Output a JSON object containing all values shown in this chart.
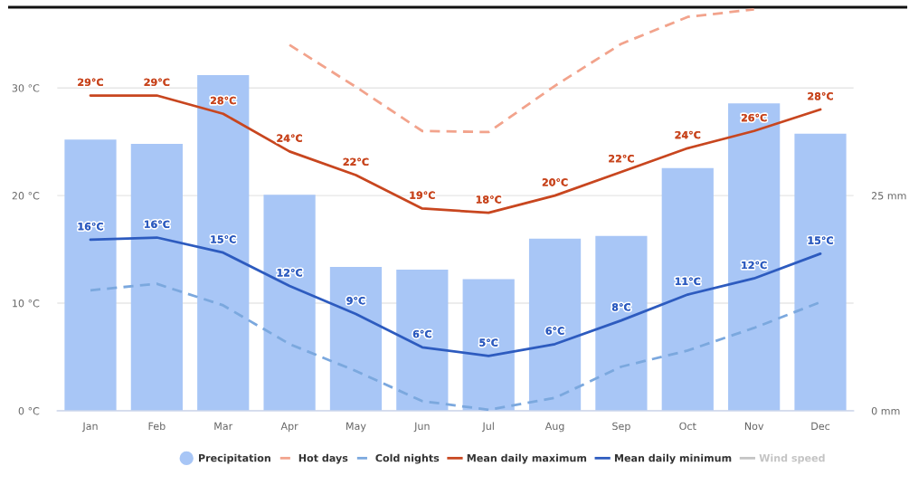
{
  "chart_data": {
    "type": "line",
    "categories": [
      "Jan",
      "Feb",
      "Mar",
      "Apr",
      "May",
      "Jun",
      "Jul",
      "Aug",
      "Sep",
      "Oct",
      "Nov",
      "Dec"
    ],
    "series": [
      {
        "name": "Precipitation",
        "type": "bar",
        "axis": "y2",
        "color": "#a8c6f6",
        "values": [
          31.5,
          31.0,
          39.0,
          25.1,
          16.7,
          16.4,
          15.3,
          20.0,
          20.3,
          28.2,
          35.7,
          32.2
        ]
      },
      {
        "name": "Hot days",
        "line_style": "dashed",
        "color": "#f2a38c",
        "values": [
          null,
          null,
          null,
          34,
          30.1,
          26,
          25.9,
          30.2,
          34.1,
          36.6,
          37.3,
          null
        ]
      },
      {
        "name": "Cold nights",
        "line_style": "dashed",
        "color": "#7ba8de",
        "values": [
          11.2,
          11.8,
          9.8,
          6.2,
          3.7,
          0.9,
          0.1,
          1.2,
          4.1,
          5.6,
          7.7,
          10.1
        ]
      },
      {
        "name": "Mean daily maximum",
        "line_style": "solid",
        "color": "#c8461f",
        "values": [
          29.3,
          29.3,
          27.6,
          24.1,
          21.9,
          18.8,
          18.4,
          20.0,
          22.2,
          24.4,
          26.0,
          28.0
        ],
        "value_labels": [
          "29°C",
          "29°C",
          "28°C",
          "24°C",
          "22°C",
          "19°C",
          "18°C",
          "20°C",
          "22°C",
          "24°C",
          "26°C",
          "28°C"
        ]
      },
      {
        "name": "Mean daily minimum",
        "line_style": "solid",
        "color": "#2d5bbf",
        "values": [
          15.9,
          16.1,
          14.7,
          11.6,
          9.0,
          5.9,
          5.1,
          6.2,
          8.4,
          10.8,
          12.3,
          14.6
        ],
        "value_labels": [
          "16°C",
          "16°C",
          "15°C",
          "12°C",
          "9°C",
          "6°C",
          "5°C",
          "6°C",
          "8°C",
          "11°C",
          "12°C",
          "15°C"
        ]
      },
      {
        "name": "Wind speed",
        "line_style": "solid",
        "color": "#c4c4c4",
        "values": [
          null,
          null,
          null,
          null,
          null,
          null,
          null,
          null,
          null,
          null,
          null,
          null
        ]
      }
    ],
    "ylim": [
      0,
      37.5
    ],
    "yticks": [
      {
        "value": 0,
        "label": "0 °C"
      },
      {
        "value": 10,
        "label": "10 °C"
      },
      {
        "value": 20,
        "label": "20 °C"
      },
      {
        "value": 30,
        "label": "30 °C"
      }
    ],
    "y2lim": [
      0,
      46.875
    ],
    "y2ticks": [
      {
        "value": 0,
        "label": "0 mm"
      },
      {
        "value": 25,
        "label": "25 mm"
      }
    ],
    "grid": "y",
    "legend": "bottom"
  }
}
